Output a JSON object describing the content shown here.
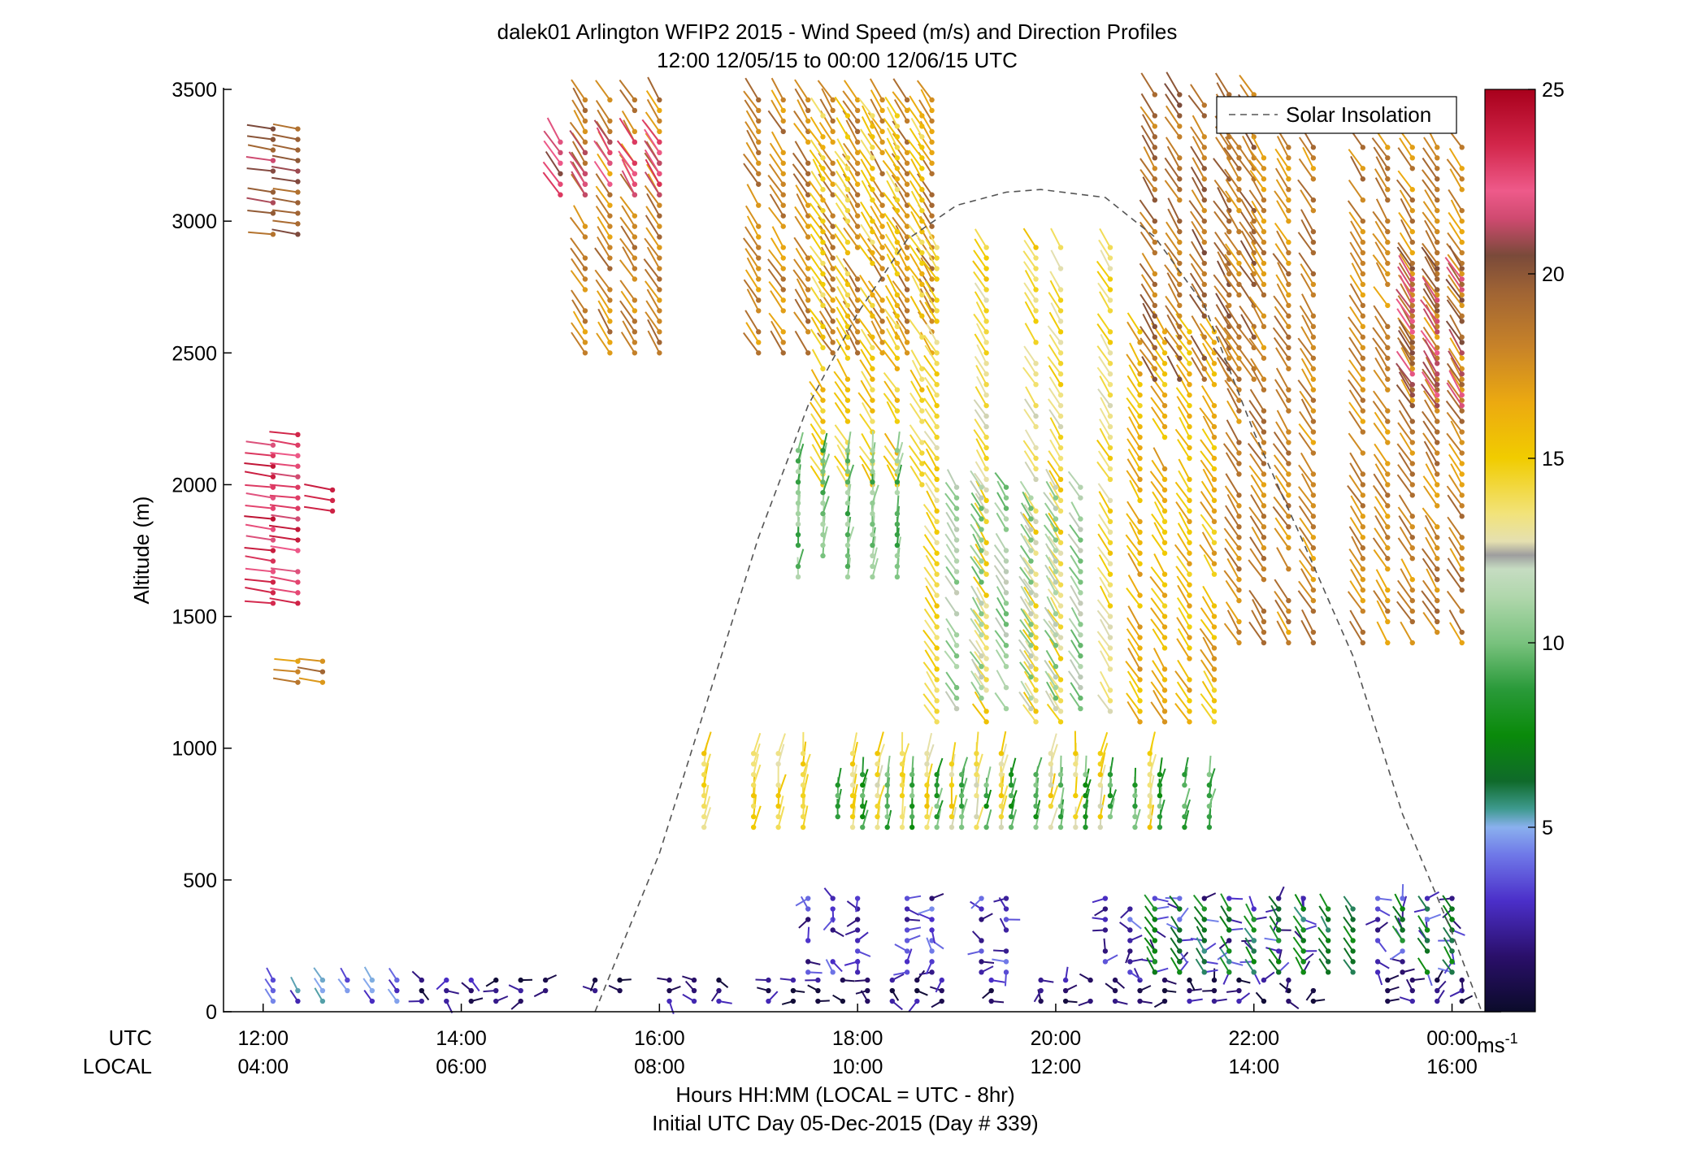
{
  "chart_data": {
    "type": "scatter",
    "title": "dalek01 Arlington WFIP2 2015 - Wind Speed (m/s) and Direction Profiles",
    "subtitle": "12:00 12/05/15 to 00:00 12/06/15  UTC",
    "xlabel": "Hours HH:MM  (LOCAL = UTC - 8hr)",
    "xlabel2": "Initial UTC Day 05-Dec-2015 (Day # 339)",
    "ylabel": "Altitude (m)",
    "row_labels": {
      "utc": "UTC",
      "local": "LOCAL"
    },
    "xlim_hours_utc": [
      11.6,
      24.25
    ],
    "ylim": [
      0,
      3500
    ],
    "x_ticks": [
      {
        "hour": 12,
        "utc": "12:00",
        "local": "04:00"
      },
      {
        "hour": 14,
        "utc": "14:00",
        "local": "06:00"
      },
      {
        "hour": 16,
        "utc": "16:00",
        "local": "08:00"
      },
      {
        "hour": 18,
        "utc": "18:00",
        "local": "10:00"
      },
      {
        "hour": 20,
        "utc": "20:00",
        "local": "12:00"
      },
      {
        "hour": 22,
        "utc": "22:00",
        "local": "14:00"
      },
      {
        "hour": 24,
        "utc": "00:00",
        "local": "16:00"
      }
    ],
    "y_ticks": [
      0,
      500,
      1000,
      1500,
      2000,
      2500,
      3000,
      3500
    ],
    "grid": false,
    "legend": {
      "position": "top-right",
      "entries": [
        "Solar Insolation"
      ]
    },
    "colorbar": {
      "min": 0,
      "max": 25,
      "ticks": [
        5,
        10,
        15,
        20,
        25
      ],
      "unit": "ms",
      "unit_superscript": "-1"
    },
    "series": [
      {
        "name": "Solar Insolation",
        "style": "dashed",
        "x_hours_utc": [
          15.35,
          16.0,
          16.5,
          17.0,
          17.5,
          18.0,
          18.5,
          19.0,
          19.5,
          19.85,
          20.5,
          21.0,
          21.5,
          22.0,
          22.5,
          23.0,
          23.5,
          24.0,
          24.3
        ],
        "altitude_m": [
          0,
          600,
          1200,
          1800,
          2300,
          2650,
          2930,
          3060,
          3110,
          3120,
          3090,
          2940,
          2680,
          2200,
          1780,
          1350,
          750,
          300,
          0
        ]
      }
    ],
    "wind_barbs_note": "Wind vectors plotted as stick barbs at profiler range gates; color encodes wind speed (m/s) per colorbar.",
    "wind_regions": [
      {
        "hours_utc": [
          12.1,
          12.4
        ],
        "altitude_m": [
          1550,
          2200
        ],
        "speed_ms": 23,
        "dir": "west"
      },
      {
        "hours_utc": [
          12.1,
          12.4
        ],
        "altitude_m": [
          2950,
          3350
        ],
        "speed_ms": 20,
        "dir": "west"
      },
      {
        "hours_utc": [
          12.35,
          12.6
        ],
        "altitude_m": [
          1250,
          1330
        ],
        "speed_ms": 18,
        "dir": "west"
      },
      {
        "hours_utc": [
          12.7,
          12.9
        ],
        "altitude_m": [
          1900,
          2000
        ],
        "speed_ms": 23,
        "dir": "west"
      },
      {
        "hours_utc": [
          12.1,
          13.6
        ],
        "altitude_m": [
          0,
          130
        ],
        "speed_ms": 4,
        "dir": "southwest"
      },
      {
        "hours_utc": [
          13.6,
          24.2
        ],
        "altitude_m": [
          0,
          130
        ],
        "speed_ms": 1.5,
        "dir": "variable"
      },
      {
        "hours_utc": [
          15.0,
          18.8
        ],
        "altitude_m": [
          2500,
          3500
        ],
        "speed_ms": 18,
        "dir": "southwest"
      },
      {
        "hours_utc": [
          15.0,
          16.0
        ],
        "altitude_m": [
          3100,
          3300
        ],
        "speed_ms": 22,
        "dir": "southwest"
      },
      {
        "hours_utc": [
          17.4,
          18.8
        ],
        "altitude_m": [
          2000,
          3400
        ],
        "speed_ms": 15,
        "dir": "southwest"
      },
      {
        "hours_utc": [
          17.4,
          18.6
        ],
        "altitude_m": [
          1650,
          2150
        ],
        "speed_ms": 10,
        "dir": "south"
      },
      {
        "hours_utc": [
          18.8,
          20.6
        ],
        "altitude_m": [
          1100,
          2900
        ],
        "speed_ms": 14,
        "dir": "southwest"
      },
      {
        "hours_utc": [
          19.0,
          20.6
        ],
        "altitude_m": [
          1150,
          2000
        ],
        "speed_ms": 11,
        "dir": "southwest"
      },
      {
        "hours_utc": [
          20.6,
          21.7
        ],
        "altitude_m": [
          1100,
          2600
        ],
        "speed_ms": 16,
        "dir": "southwest"
      },
      {
        "hours_utc": [
          21.0,
          22.0
        ],
        "altitude_m": [
          2400,
          3500
        ],
        "speed_ms": 19,
        "dir": "southwest"
      },
      {
        "hours_utc": [
          21.6,
          24.2
        ],
        "altitude_m": [
          1400,
          3300
        ],
        "speed_ms": 18,
        "dir": "southwest"
      },
      {
        "hours_utc": [
          23.6,
          24.2
        ],
        "altitude_m": [
          2300,
          2850
        ],
        "speed_ms": 21,
        "dir": "southwest"
      },
      {
        "hours_utc": [
          16.2,
          21.0
        ],
        "altitude_m": [
          700,
          1000
        ],
        "speed_ms": 14,
        "dir": "south"
      },
      {
        "hours_utc": [
          17.8,
          21.6
        ],
        "altitude_m": [
          700,
          900
        ],
        "speed_ms": 9,
        "dir": "south"
      },
      {
        "hours_utc": [
          17.5,
          24.2
        ],
        "altitude_m": [
          150,
          450
        ],
        "speed_ms": 3,
        "dir": "variable"
      },
      {
        "hours_utc": [
          21.0,
          24.2
        ],
        "altitude_m": [
          150,
          420
        ],
        "speed_ms": 7,
        "dir": "southwest"
      }
    ]
  }
}
